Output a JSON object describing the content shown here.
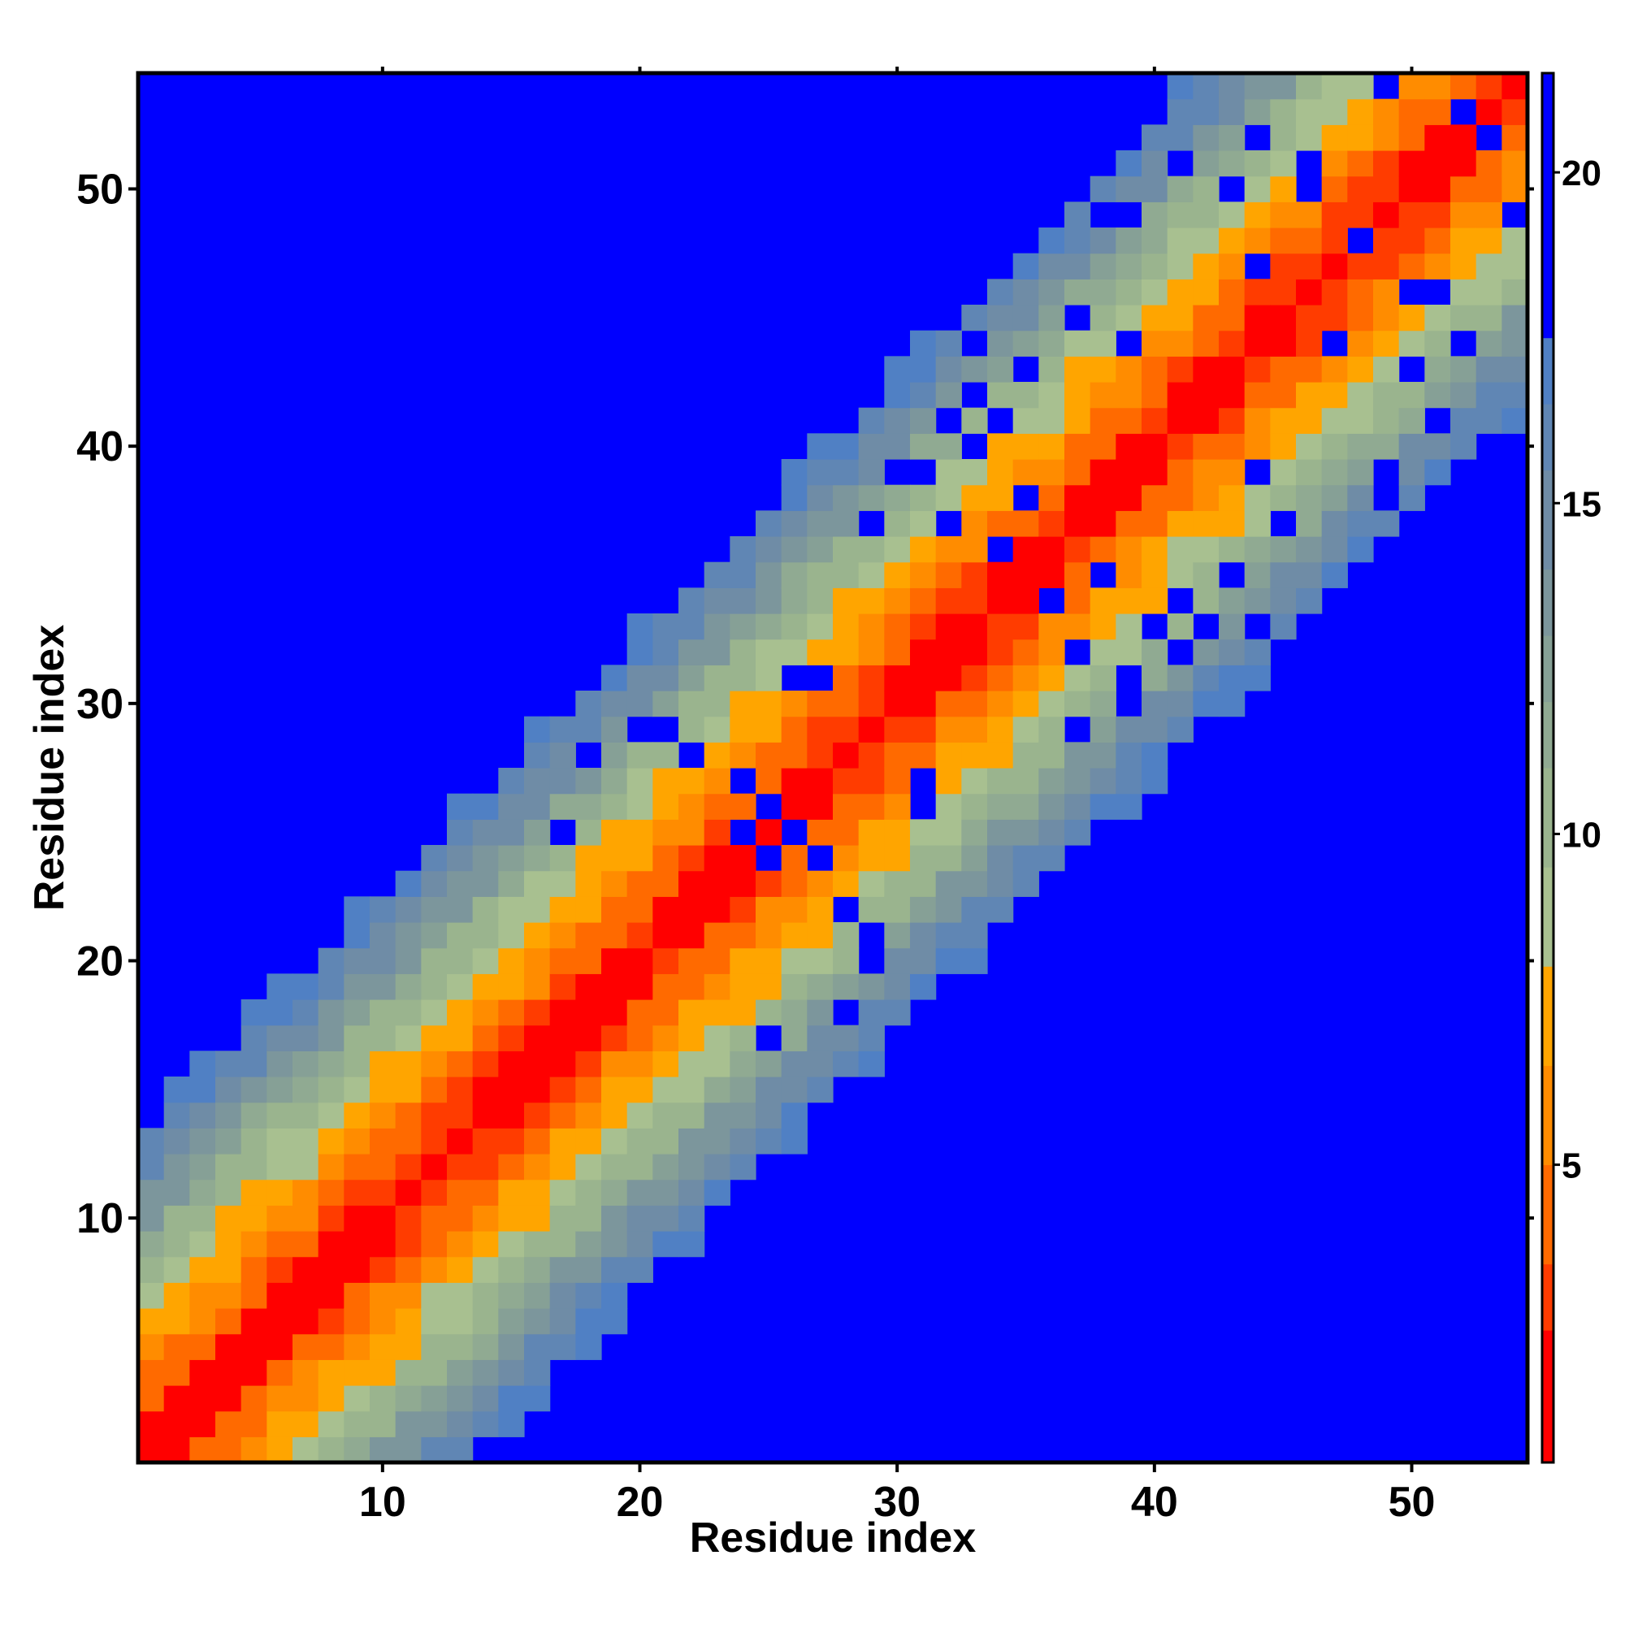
{
  "chart_data": {
    "type": "heatmap",
    "title": "",
    "xlabel": "Residue index",
    "ylabel": "Residue index",
    "n_residues": 54,
    "xlim": [
      0.5,
      54.5
    ],
    "ylim": [
      0.5,
      54.5
    ],
    "x_ticks": [
      10,
      20,
      30,
      40,
      50
    ],
    "y_ticks": [
      10,
      20,
      30,
      40,
      50
    ],
    "colorbar": {
      "ticks": [
        5,
        10,
        15,
        20
      ],
      "range": [
        0.5,
        21.5
      ],
      "position": "right"
    },
    "color_scale": [
      {
        "max": 2.5,
        "color": "#ff0000"
      },
      {
        "max": 3.5,
        "color": "#ff3c00"
      },
      {
        "max": 5.0,
        "color": "#ff6a00"
      },
      {
        "max": 6.5,
        "color": "#ff8c00"
      },
      {
        "max": 8.0,
        "color": "#ffa500"
      },
      {
        "max": 9.5,
        "color": "#a8c090"
      },
      {
        "max": 11.0,
        "color": "#9ab48e"
      },
      {
        "max": 12.0,
        "color": "#90aa92"
      },
      {
        "max": 13.0,
        "color": "#86a096"
      },
      {
        "max": 14.0,
        "color": "#7c969c"
      },
      {
        "max": 15.5,
        "color": "#6f8ca6"
      },
      {
        "max": 16.5,
        "color": "#6086b4"
      },
      {
        "max": 17.5,
        "color": "#5080c4"
      },
      {
        "max": 99,
        "color": "#0000ff"
      }
    ],
    "background_color": "#0000ff",
    "cutoff": 17.5,
    "distance_model": {
      "per_residue_step": 1.3,
      "base_offset": 0.8,
      "local_min": 3.8
    },
    "voids": [
      [
        17,
        25
      ],
      [
        20,
        29
      ],
      [
        22,
        28
      ],
      [
        24,
        27
      ],
      [
        25,
        24
      ],
      [
        26,
        25
      ],
      [
        28,
        22
      ],
      [
        28,
        18
      ],
      [
        29,
        21
      ],
      [
        27,
        31
      ],
      [
        31,
        26
      ],
      [
        29,
        37
      ],
      [
        30,
        39
      ],
      [
        32,
        41
      ],
      [
        33,
        44
      ],
      [
        33,
        42
      ],
      [
        35,
        43
      ],
      [
        38,
        49
      ],
      [
        39,
        52
      ],
      [
        40,
        54
      ],
      [
        44,
        52
      ],
      [
        46,
        50
      ],
      [
        48,
        48
      ],
      [
        51,
        46
      ],
      [
        52,
        53
      ],
      [
        36,
        34
      ],
      [
        37,
        32
      ],
      [
        38,
        35
      ],
      [
        39,
        31
      ],
      [
        40,
        33
      ],
      [
        41,
        34
      ],
      [
        44,
        39
      ],
      [
        43,
        35
      ],
      [
        47,
        44
      ],
      [
        45,
        37
      ],
      [
        50,
        43
      ],
      [
        53,
        40
      ],
      [
        54,
        49
      ],
      [
        49,
        39
      ],
      [
        51,
        41
      ]
    ]
  }
}
